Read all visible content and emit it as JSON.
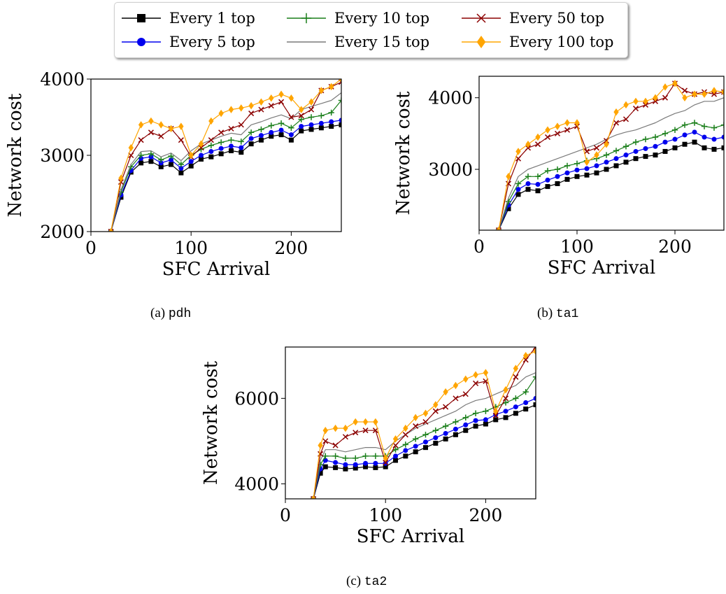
{
  "legend": {
    "items": [
      {
        "name": "Every 1 top",
        "color": "#000000",
        "marker": "square"
      },
      {
        "name": "Every 5 top",
        "color": "#0000ee",
        "marker": "circle"
      },
      {
        "name": "Every 10 top",
        "color": "#1a7f1a",
        "marker": "plus"
      },
      {
        "name": "Every 15 top",
        "color": "#7a7a7a",
        "marker": "none"
      },
      {
        "name": "Every 50 top",
        "color": "#8b0000",
        "marker": "x"
      },
      {
        "name": "Every 100 top",
        "color": "#ffa500",
        "marker": "diamond"
      }
    ]
  },
  "captions": [
    {
      "label": "(a)",
      "name": "pdh"
    },
    {
      "label": "(b)",
      "name": "ta1"
    },
    {
      "label": "(c)",
      "name": "ta2"
    }
  ],
  "chart_data": [
    {
      "type": "line",
      "subplot": "pdh",
      "xlabel": "SFC Arrival",
      "ylabel": "Network cost",
      "xlim": [
        0,
        250
      ],
      "ylim": [
        2000,
        4000
      ],
      "xticks": [
        0,
        100,
        200
      ],
      "yticks": [
        2000,
        3000,
        4000
      ],
      "x": [
        20,
        30,
        40,
        50,
        60,
        70,
        80,
        90,
        100,
        110,
        120,
        130,
        140,
        150,
        160,
        170,
        180,
        190,
        200,
        210,
        220,
        230,
        240,
        250
      ],
      "series": [
        {
          "name": "Every 1 top",
          "values": [
            2000,
            2450,
            2780,
            2900,
            2920,
            2850,
            2880,
            2770,
            2860,
            2950,
            2980,
            3020,
            3060,
            3040,
            3150,
            3200,
            3250,
            3270,
            3200,
            3320,
            3340,
            3360,
            3380,
            3400
          ]
        },
        {
          "name": "Every 5 top",
          "values": [
            2000,
            2480,
            2800,
            2960,
            2980,
            2900,
            2940,
            2830,
            2920,
            3000,
            3050,
            3090,
            3120,
            3100,
            3220,
            3260,
            3300,
            3330,
            3270,
            3380,
            3400,
            3420,
            3440,
            3460
          ]
        },
        {
          "name": "Every 10 top",
          "values": [
            2000,
            2520,
            2850,
            3000,
            3020,
            2940,
            2990,
            2880,
            3000,
            3080,
            3130,
            3170,
            3200,
            3180,
            3300,
            3340,
            3390,
            3420,
            3360,
            3470,
            3500,
            3520,
            3560,
            3720
          ]
        },
        {
          "name": "Every 15 top",
          "values": [
            2000,
            2550,
            2880,
            3050,
            3060,
            2980,
            3030,
            2930,
            3060,
            3150,
            3200,
            3250,
            3290,
            3270,
            3400,
            3440,
            3490,
            3530,
            3480,
            3600,
            3640,
            3680,
            3720,
            3820
          ]
        },
        {
          "name": "Every 50 top",
          "values": [
            2000,
            2650,
            3000,
            3200,
            3300,
            3250,
            3350,
            3200,
            2980,
            3100,
            3200,
            3300,
            3350,
            3400,
            3550,
            3600,
            3650,
            3700,
            3500,
            3520,
            3600,
            3850,
            3900,
            3960
          ]
        },
        {
          "name": "Every 100 top",
          "values": [
            2000,
            2700,
            3100,
            3400,
            3450,
            3400,
            3350,
            3380,
            3000,
            3150,
            3450,
            3550,
            3600,
            3620,
            3650,
            3700,
            3750,
            3800,
            3750,
            3600,
            3700,
            3850,
            3900,
            4000
          ]
        }
      ]
    },
    {
      "type": "line",
      "subplot": "ta1",
      "xlabel": "SFC Arrival",
      "ylabel": "Network cost",
      "xlim": [
        0,
        250
      ],
      "ylim": [
        2150,
        4300
      ],
      "xticks": [
        0,
        100,
        200
      ],
      "yticks": [
        3000,
        4000
      ],
      "x": [
        20,
        30,
        40,
        50,
        60,
        70,
        80,
        90,
        100,
        110,
        120,
        130,
        140,
        150,
        160,
        170,
        180,
        190,
        200,
        210,
        220,
        230,
        240,
        250
      ],
      "series": [
        {
          "name": "Every 1 top",
          "values": [
            2150,
            2450,
            2650,
            2720,
            2700,
            2760,
            2800,
            2860,
            2900,
            2920,
            2950,
            3000,
            3050,
            3100,
            3150,
            3180,
            3200,
            3250,
            3300,
            3350,
            3380,
            3300,
            3280,
            3300
          ]
        },
        {
          "name": "Every 5 top",
          "values": [
            2150,
            2500,
            2720,
            2800,
            2790,
            2850,
            2900,
            2950,
            2990,
            3010,
            3050,
            3100,
            3150,
            3200,
            3250,
            3290,
            3320,
            3380,
            3420,
            3480,
            3520,
            3450,
            3420,
            3450
          ]
        },
        {
          "name": "Every 10 top",
          "values": [
            2150,
            2550,
            2800,
            2900,
            2900,
            2980,
            3000,
            3050,
            3080,
            3120,
            3150,
            3200,
            3260,
            3320,
            3380,
            3420,
            3450,
            3500,
            3550,
            3620,
            3650,
            3600,
            3580,
            3620
          ]
        },
        {
          "name": "Every 15 top",
          "values": [
            2150,
            2600,
            2900,
            3000,
            3050,
            3100,
            3150,
            3200,
            3250,
            3300,
            3350,
            3420,
            3480,
            3520,
            3550,
            3600,
            3650,
            3720,
            3780,
            3820,
            3900,
            3950,
            3950,
            4000
          ]
        },
        {
          "name": "Every 50 top",
          "values": [
            2150,
            2800,
            3150,
            3300,
            3350,
            3450,
            3500,
            3550,
            3600,
            3250,
            3300,
            3400,
            3650,
            3700,
            3850,
            3900,
            3950,
            4000,
            4200,
            4100,
            4050,
            4080,
            4050,
            4080
          ]
        },
        {
          "name": "Every 100 top",
          "values": [
            2150,
            2900,
            3250,
            3350,
            3450,
            3550,
            3600,
            3650,
            3650,
            3100,
            3200,
            3350,
            3800,
            3900,
            3950,
            3950,
            4000,
            4150,
            4200,
            4000,
            4050,
            4050,
            4100,
            4080
          ]
        }
      ]
    },
    {
      "type": "line",
      "subplot": "ta2",
      "xlabel": "SFC Arrival",
      "ylabel": "Network cost",
      "xlim": [
        0,
        250
      ],
      "ylim": [
        3650,
        7200
      ],
      "xticks": [
        0,
        100,
        200
      ],
      "yticks": [
        4000,
        6000
      ],
      "x": [
        28,
        35,
        40,
        50,
        60,
        70,
        80,
        90,
        100,
        110,
        120,
        130,
        140,
        150,
        160,
        170,
        180,
        190,
        200,
        210,
        220,
        230,
        240,
        250
      ],
      "series": [
        {
          "name": "Every 1 top",
          "values": [
            3650,
            4250,
            4400,
            4380,
            4350,
            4370,
            4400,
            4380,
            4400,
            4550,
            4650,
            4750,
            4850,
            4950,
            5050,
            5150,
            5250,
            5350,
            5400,
            5500,
            5550,
            5650,
            5750,
            5850
          ]
        },
        {
          "name": "Every 5 top",
          "values": [
            3650,
            4350,
            4550,
            4500,
            4450,
            4450,
            4480,
            4480,
            4480,
            4650,
            4780,
            4880,
            4980,
            5080,
            5180,
            5280,
            5380,
            5480,
            5500,
            5620,
            5700,
            5800,
            5900,
            6000
          ]
        },
        {
          "name": "Every 10 top",
          "values": [
            3650,
            4450,
            4650,
            4650,
            4600,
            4600,
            4650,
            4650,
            4650,
            4800,
            4920,
            5050,
            5150,
            5250,
            5350,
            5450,
            5550,
            5650,
            5700,
            5800,
            5900,
            6000,
            6150,
            6500
          ]
        },
        {
          "name": "Every 15 top",
          "values": [
            3650,
            4550,
            4800,
            4800,
            4750,
            4800,
            4850,
            4850,
            4800,
            5000,
            5150,
            5300,
            5400,
            5500,
            5600,
            5700,
            5850,
            5950,
            6000,
            6100,
            6200,
            6300,
            6500,
            6600
          ]
        },
        {
          "name": "Every 50 top",
          "values": [
            3650,
            4700,
            5000,
            4900,
            5100,
            5200,
            5250,
            5250,
            4500,
            4900,
            5150,
            5350,
            5450,
            5700,
            5800,
            6000,
            6100,
            6350,
            6400,
            5600,
            6000,
            6500,
            6900,
            7200
          ]
        },
        {
          "name": "Every 100 top",
          "values": [
            3650,
            4900,
            5250,
            5300,
            5300,
            5450,
            5450,
            5450,
            4600,
            5050,
            5300,
            5550,
            5650,
            5850,
            6150,
            6300,
            6450,
            6550,
            6600,
            5700,
            6200,
            6700,
            7000,
            7100
          ]
        }
      ]
    }
  ]
}
